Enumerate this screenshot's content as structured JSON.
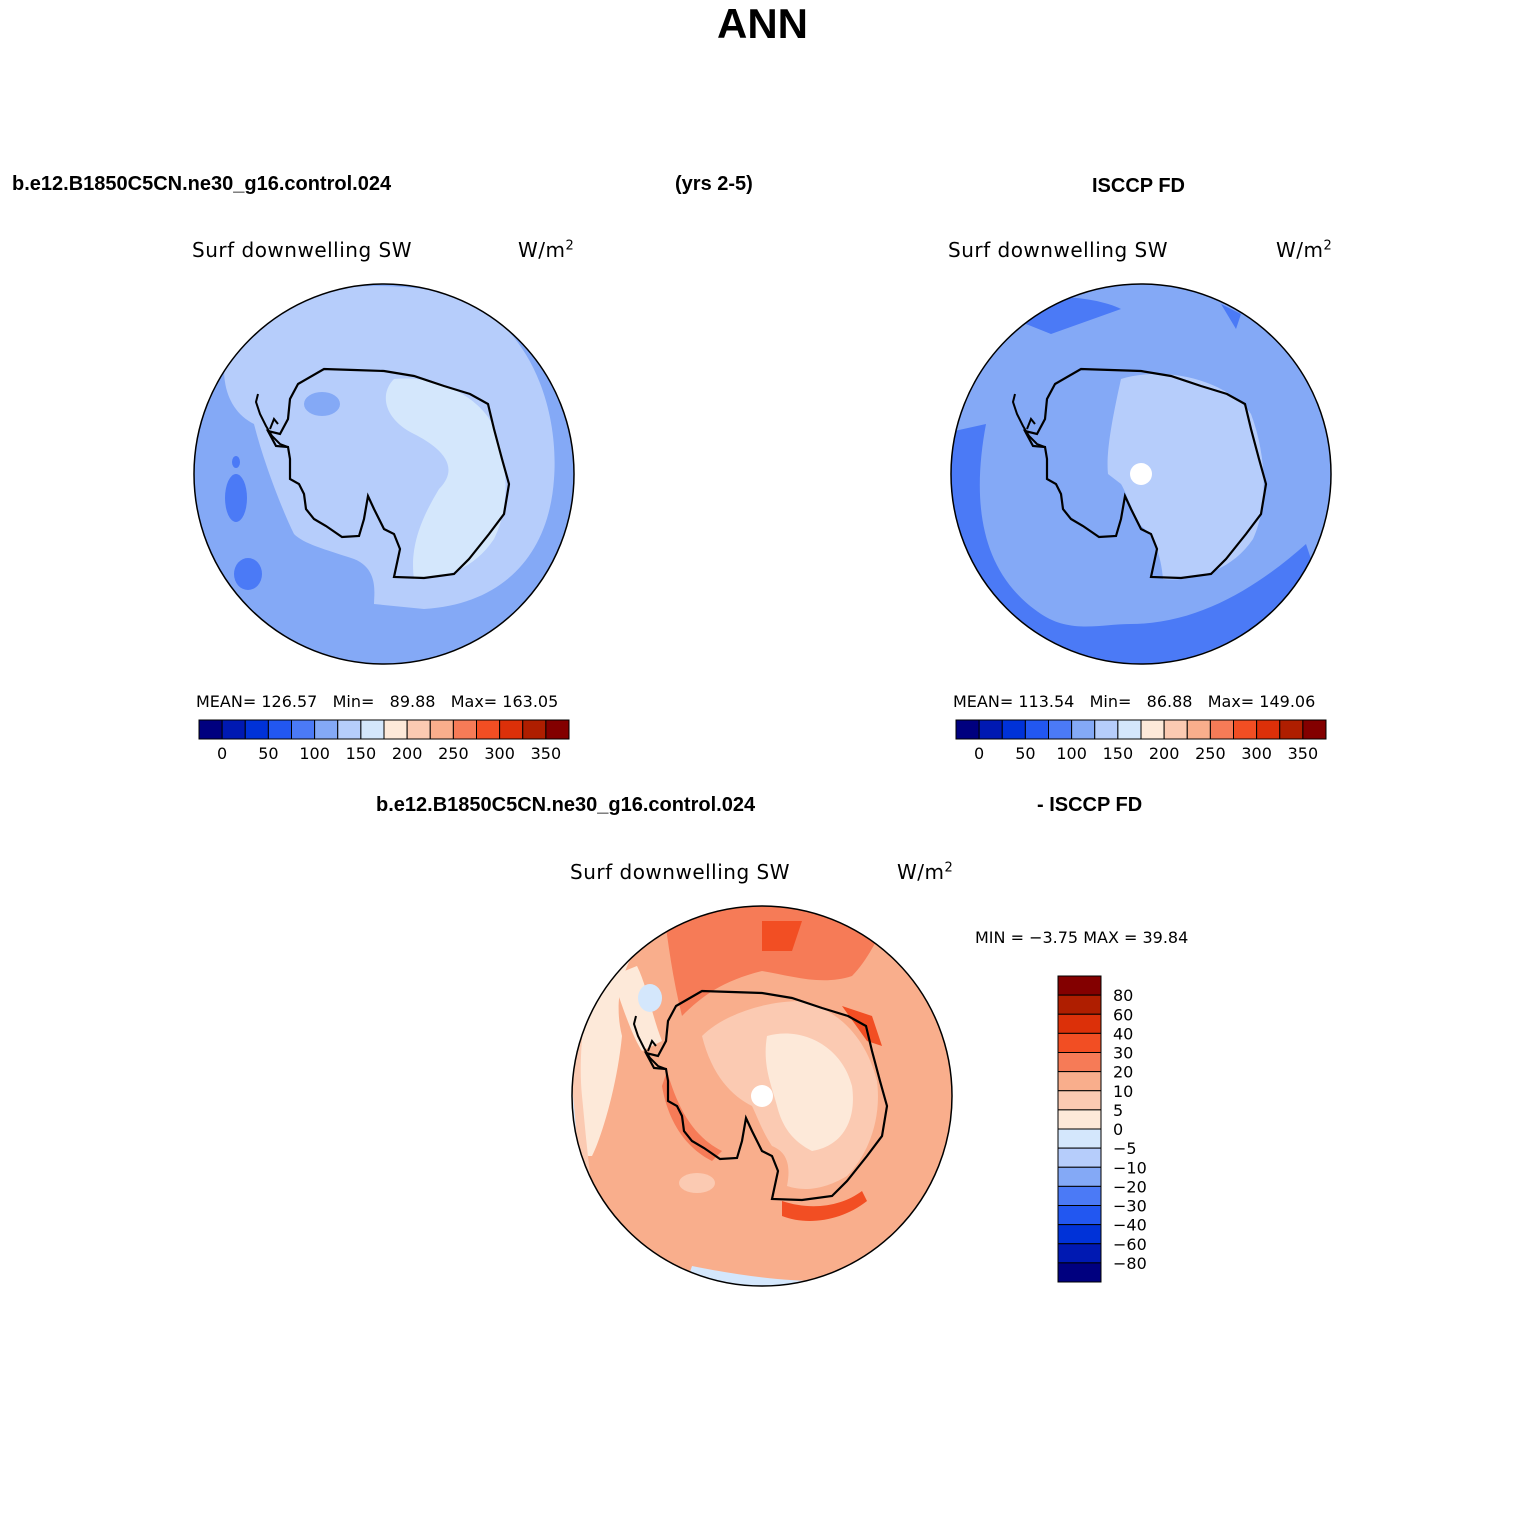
{
  "title": "ANN",
  "header": {
    "case_name": "b.e12.B1850C5CN.ne30_g16.control.024",
    "years": "(yrs 2-5)",
    "obs_name": "ISCCP FD"
  },
  "diff_header": {
    "case_name": "b.e12.B1850C5CN.ne30_g16.control.024",
    "obs_name": "- ISCCP FD"
  },
  "colors": {
    "coast": "#000000",
    "ocean_model": "#84a9f6",
    "ocean_obs": "#84a9f6",
    "ocean_diff": "#f9ae8c"
  },
  "panels": [
    {
      "id": "model",
      "variable": "Surf downwelling SW",
      "units": "W/m",
      "units_sup": "2",
      "mean_label": "MEAN=",
      "mean": "126.57",
      "min_label": "Min=",
      "min": "89.88",
      "max_label": "Max=",
      "max": "163.05"
    },
    {
      "id": "obs",
      "variable": "Surf downwelling SW",
      "units": "W/m",
      "units_sup": "2",
      "mean_label": "MEAN=",
      "mean": "113.54",
      "min_label": "Min=",
      "min": "86.88",
      "max_label": "Max=",
      "max": "149.06"
    }
  ],
  "diff_panel": {
    "variable": "Surf downwelling SW",
    "units": "W/m",
    "units_sup": "2",
    "minmax_text": "MIN =  −3.75 MAX =  39.84"
  },
  "abs_colorbar": {
    "colors": [
      "#00007f",
      "#0019b2",
      "#0032d8",
      "#2257f1",
      "#4b7af6",
      "#84a9f6",
      "#b6cdfb",
      "#d4e7fc",
      "#fde9d9",
      "#fbcab2",
      "#f9ae8c",
      "#f67b57",
      "#f24e23",
      "#dc3009",
      "#af1e00",
      "#830000"
    ],
    "labels": [
      "0",
      "50",
      "100",
      "150",
      "200",
      "250",
      "300",
      "350"
    ]
  },
  "diff_colorbar": {
    "colors": [
      "#830000",
      "#af1e00",
      "#dc3009",
      "#f24e23",
      "#f67b57",
      "#f9ae8c",
      "#fbcab2",
      "#fde9d9",
      "#d4e7fc",
      "#b6cdfb",
      "#84a9f6",
      "#4b7af6",
      "#2257f1",
      "#0032d8",
      "#0019b2",
      "#00007f"
    ],
    "labels": [
      "80",
      "60",
      "40",
      "30",
      "20",
      "10",
      "5",
      "0",
      "−5",
      "−10",
      "−20",
      "−30",
      "−40",
      "−60",
      "−80"
    ]
  }
}
